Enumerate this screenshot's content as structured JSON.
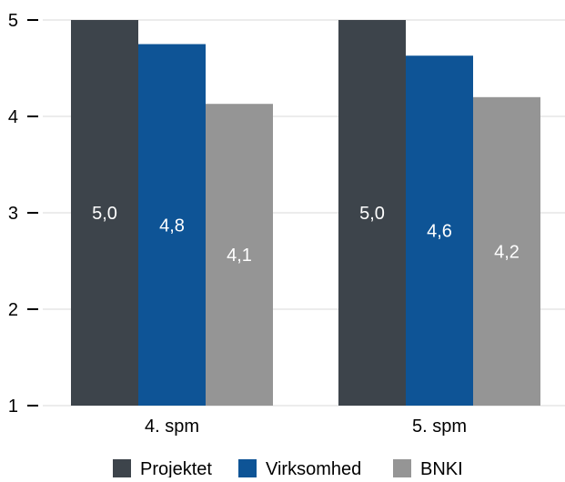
{
  "chart_data": {
    "type": "bar",
    "categories": [
      "4. spm",
      "5. spm"
    ],
    "series": [
      {
        "name": "Projektet",
        "values": [
          5.0,
          5.0
        ],
        "labels": [
          "5,0",
          "5,0"
        ],
        "color": "#3d444b",
        "label_color": "#ffffff"
      },
      {
        "name": "Virksomhed",
        "values": [
          4.75,
          4.63
        ],
        "labels": [
          "4,8",
          "4,6"
        ],
        "color": "#0e5496",
        "label_color": "#ffffff"
      },
      {
        "name": "BNKI",
        "values": [
          4.13,
          4.2
        ],
        "labels": [
          "4,1",
          "4,2"
        ],
        "color": "#959595",
        "label_color": "#ffffff"
      }
    ],
    "y_ticks": [
      "1",
      "2",
      "3",
      "4",
      "5"
    ],
    "ylim": [
      1,
      5
    ],
    "grid": true,
    "legend_position": "bottom"
  }
}
